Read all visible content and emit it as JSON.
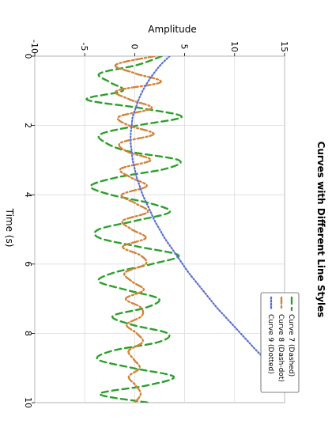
{
  "chart_data": {
    "type": "line",
    "title": "Curves with Different Line Styles",
    "xlabel": "Time (s)",
    "ylabel": "Amplitude",
    "xlim": [
      0,
      10
    ],
    "ylim": [
      -10,
      15
    ],
    "x_ticks": [
      "0",
      "2",
      "4",
      "6",
      "8",
      "10"
    ],
    "y_ticks": [
      "-10",
      "-5",
      "0",
      "5",
      "10",
      "15"
    ],
    "grid": true,
    "legend_placement": "top-right",
    "orientation": "rotated 90 degrees clockwise",
    "x": [
      0,
      0.25,
      0.5,
      0.75,
      1,
      1.25,
      1.5,
      1.75,
      2,
      2.25,
      2.5,
      2.75,
      3,
      3.25,
      3.5,
      3.75,
      4,
      4.25,
      4.5,
      4.75,
      5,
      5.25,
      5.5,
      5.75,
      6,
      6.25,
      6.5,
      6.75,
      7,
      7.25,
      7.5,
      7.75,
      8,
      8.25,
      8.5,
      8.75,
      9,
      9.25,
      9.5,
      9.75,
      10
    ],
    "series": [
      {
        "name": "Curve 7 (Dashed)",
        "color": "#2ca02c",
        "dash": "dashed",
        "values": [
          2.7,
          0.3,
          -3.5,
          -2.5,
          -1.2,
          -4.8,
          0.6,
          4.7,
          0.3,
          -3.4,
          -2.9,
          -0.6,
          4.4,
          3.1,
          -1.8,
          -4.4,
          -2.4,
          1.6,
          3.5,
          0.1,
          -3.6,
          -3.5,
          0.4,
          4.4,
          1.7,
          -2.1,
          -3.6,
          -0.8,
          2.4,
          1.2,
          -2.2,
          -0.3,
          3.3,
          2.4,
          -2.2,
          -3.7,
          -0.2,
          3.9,
          1.3,
          -3.5,
          1.4
        ]
      },
      {
        "name": "Curve 8 (Dash-dot)",
        "color": "#d2843c",
        "dash": "dash-dot",
        "values": [
          2.0,
          -1.9,
          0.1,
          2.6,
          -1.8,
          -0.5,
          1.7,
          -1.6,
          -0.6,
          1.9,
          -1.4,
          -0.8,
          1.6,
          -1.4,
          -0.4,
          1.2,
          -1.3,
          0.1,
          1.3,
          -1.2,
          -0.3,
          1.1,
          -1.2,
          0.6,
          1.1,
          -1.0,
          -0.3,
          0.9,
          -0.9,
          0.6,
          0.7,
          -0.8,
          0.2,
          0.8,
          -0.6,
          -0.1,
          0.5,
          -0.6,
          0.1,
          0.6,
          0.0
        ]
      },
      {
        "name": "Curve 9 (Dotted)",
        "color": "#5a6fd0",
        "dash": "dotted",
        "values": [
          3.5,
          2.6,
          1.9,
          1.3,
          0.8,
          0.4,
          0.1,
          -0.2,
          -0.3,
          -0.4,
          -0.4,
          -0.3,
          -0.2,
          0.0,
          0.2,
          0.5,
          0.8,
          1.2,
          1.6,
          2.0,
          2.5,
          3.0,
          3.6,
          4.2,
          4.8,
          5.4,
          6.1,
          6.8,
          7.5,
          8.2,
          9.0,
          9.8,
          10.6,
          11.4,
          12.2,
          13.1,
          14.0,
          14.9,
          15.8,
          16.7,
          17.7
        ]
      }
    ]
  }
}
